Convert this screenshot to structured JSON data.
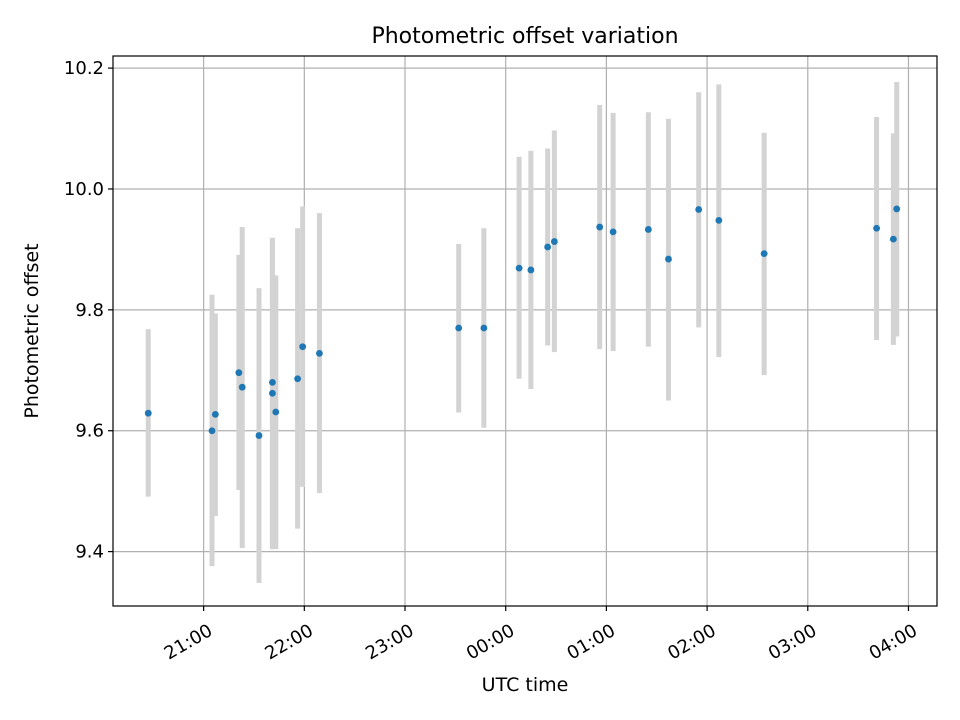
{
  "chart_data": {
    "type": "scatter",
    "title": "Photometric offset variation",
    "xlabel": "UTC time",
    "ylabel": "Photometric offset",
    "x_axis_type": "time",
    "x_ticks": [
      "21:00",
      "22:00",
      "23:00",
      "00:00",
      "01:00",
      "02:00",
      "03:00",
      "04:00"
    ],
    "y_ticks": [
      "9.4",
      "9.6",
      "9.8",
      "10.0",
      "10.2"
    ],
    "xlim": [
      "20:06",
      "04:17"
    ],
    "ylim": [
      9.31,
      10.22
    ],
    "grid": true,
    "point_color": "#1f77b4",
    "errorbar_color": "#d3d3d3",
    "points": [
      {
        "time": "20:27",
        "y": 9.629,
        "low": 9.491,
        "high": 9.768
      },
      {
        "time": "21:05",
        "y": 9.6,
        "low": 9.376,
        "high": 9.825
      },
      {
        "time": "21:07",
        "y": 9.627,
        "low": 9.459,
        "high": 9.794
      },
      {
        "time": "21:21",
        "y": 9.696,
        "low": 9.502,
        "high": 9.891
      },
      {
        "time": "21:23",
        "y": 9.672,
        "low": 9.406,
        "high": 9.937
      },
      {
        "time": "21:33",
        "y": 9.592,
        "low": 9.348,
        "high": 9.836
      },
      {
        "time": "21:41",
        "y": 9.662,
        "low": 9.404,
        "high": 9.919
      },
      {
        "time": "21:41",
        "y": 9.68,
        "low": 9.404,
        "high": 9.919
      },
      {
        "time": "21:43",
        "y": 9.631,
        "low": 9.404,
        "high": 9.857
      },
      {
        "time": "21:56",
        "y": 9.686,
        "low": 9.438,
        "high": 9.935
      },
      {
        "time": "21:59",
        "y": 9.739,
        "low": 9.507,
        "high": 9.971
      },
      {
        "time": "22:09",
        "y": 9.728,
        "low": 9.497,
        "high": 9.96
      },
      {
        "time": "23:32",
        "y": 9.77,
        "low": 9.63,
        "high": 9.909
      },
      {
        "time": "23:47",
        "y": 9.77,
        "low": 9.605,
        "high": 9.935
      },
      {
        "time": "00:08",
        "y": 9.869,
        "low": 9.686,
        "high": 10.053
      },
      {
        "time": "00:15",
        "y": 9.866,
        "low": 9.669,
        "high": 10.063
      },
      {
        "time": "00:25",
        "y": 9.904,
        "low": 9.741,
        "high": 10.067
      },
      {
        "time": "00:29",
        "y": 9.913,
        "low": 9.73,
        "high": 10.097
      },
      {
        "time": "00:56",
        "y": 9.937,
        "low": 9.735,
        "high": 10.139
      },
      {
        "time": "01:04",
        "y": 9.929,
        "low": 9.732,
        "high": 10.126
      },
      {
        "time": "01:25",
        "y": 9.933,
        "low": 9.739,
        "high": 10.127
      },
      {
        "time": "01:37",
        "y": 9.884,
        "low": 9.65,
        "high": 10.116
      },
      {
        "time": "01:55",
        "y": 9.966,
        "low": 9.771,
        "high": 10.16
      },
      {
        "time": "02:07",
        "y": 9.948,
        "low": 9.722,
        "high": 10.173
      },
      {
        "time": "02:34",
        "y": 9.893,
        "low": 9.692,
        "high": 10.093
      },
      {
        "time": "03:41",
        "y": 9.935,
        "low": 9.75,
        "high": 10.119
      },
      {
        "time": "03:51",
        "y": 9.917,
        "low": 9.742,
        "high": 10.092
      },
      {
        "time": "03:53",
        "y": 9.967,
        "low": 9.756,
        "high": 10.177
      }
    ]
  }
}
